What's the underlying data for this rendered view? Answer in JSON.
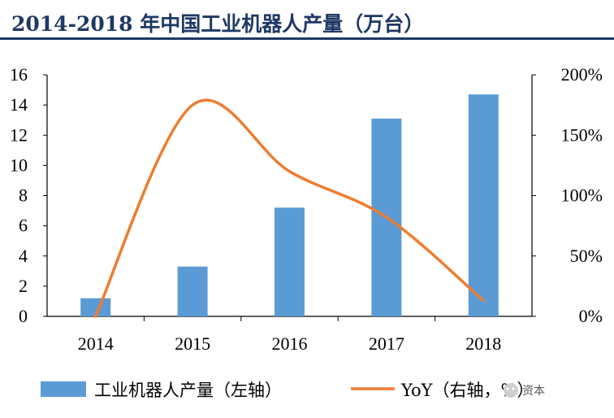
{
  "chart_data": {
    "type": "bar",
    "title": "2014-2018 年中国工业机器人产量（万台）",
    "categories": [
      "2014",
      "2015",
      "2016",
      "2017",
      "2018"
    ],
    "series": [
      {
        "name": "工业机器人产量（左轴）",
        "type": "bar",
        "axis": "left",
        "values": [
          1.2,
          3.3,
          7.2,
          13.1,
          14.7
        ],
        "color": "#5b9bd5"
      },
      {
        "name": "YoY（右轴，%）",
        "type": "line",
        "axis": "right",
        "values": [
          0,
          175,
          120,
          82,
          13
        ],
        "color": "#ed7d31"
      }
    ],
    "y_left": {
      "min": 0,
      "max": 16,
      "ticks": [
        "0",
        "2",
        "4",
        "6",
        "8",
        "10",
        "12",
        "14",
        "16"
      ]
    },
    "y_right": {
      "min": 0,
      "max": 200,
      "ticks": [
        "0%",
        "50%",
        "100%",
        "150%",
        "200%"
      ]
    },
    "grid": false,
    "legend_position": "bottom"
  },
  "watermark": {
    "text": "资本",
    "icon": "wechat-icon"
  }
}
